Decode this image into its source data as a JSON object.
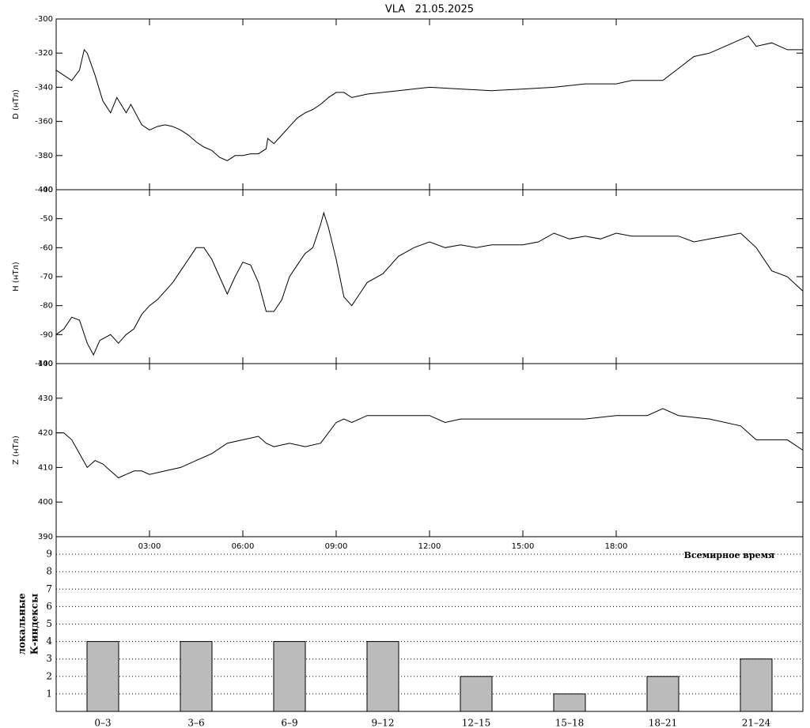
{
  "chart_data": [
    {
      "type": "line",
      "title": "VLA   21.05.2025",
      "ylabel": "D (нТл)",
      "color": "#000000",
      "xlim": [
        0,
        24
      ],
      "ylim": [
        -400,
        -300
      ],
      "yticks": [
        -300,
        -320,
        -340,
        -360,
        -380,
        -400
      ],
      "x": [
        0,
        0.25,
        0.5,
        0.75,
        0.9,
        1,
        1.25,
        1.5,
        1.75,
        1.95,
        2.25,
        2.4,
        2.75,
        3,
        3.25,
        3.5,
        3.75,
        4,
        4.25,
        4.5,
        4.75,
        5,
        5.25,
        5.5,
        5.75,
        6,
        6.25,
        6.5,
        6.75,
        6.8,
        7,
        7.25,
        7.5,
        7.75,
        8,
        8.25,
        8.5,
        8.75,
        9,
        9.25,
        9.5,
        9.75,
        10,
        11,
        12,
        13,
        14,
        15,
        16,
        17,
        18,
        18.5,
        19,
        19.5,
        20,
        20.5,
        21,
        21.5,
        22,
        22.25,
        22.5,
        23,
        23.5,
        24
      ],
      "values": [
        -330,
        -333,
        -336,
        -330,
        -318,
        -320,
        -333,
        -348,
        -355,
        -346,
        -355,
        -350,
        -362,
        -365,
        -363,
        -362,
        -363,
        -365,
        -368,
        -372,
        -375,
        -377,
        -381,
        -383,
        -380,
        -380,
        -379,
        -379,
        -376,
        -370,
        -373,
        -368,
        -363,
        -358,
        -355,
        -353,
        -350,
        -346,
        -343,
        -343,
        -346,
        -345,
        -344,
        -342,
        -340,
        -341,
        -342,
        -341,
        -340,
        -338,
        -338,
        -336,
        -336,
        -336,
        -329,
        -322,
        -320,
        -316,
        -312,
        -310,
        -316,
        -314,
        -318,
        -318
      ]
    },
    {
      "type": "line",
      "ylabel": "H (нТл)",
      "color": "#000000",
      "xlim": [
        0,
        24
      ],
      "ylim": [
        -100,
        -40
      ],
      "yticks": [
        -40,
        -50,
        -60,
        -70,
        -80,
        -90,
        -100
      ],
      "x": [
        0,
        0.25,
        0.5,
        0.75,
        1,
        1.2,
        1.4,
        1.75,
        2,
        2.25,
        2.5,
        2.75,
        3,
        3.25,
        3.5,
        3.75,
        4,
        4.25,
        4.5,
        4.75,
        5,
        5.25,
        5.5,
        5.75,
        6,
        6.25,
        6.5,
        6.75,
        7,
        7.25,
        7.5,
        7.75,
        8,
        8.25,
        8.5,
        8.6,
        8.75,
        9,
        9.25,
        9.5,
        9.75,
        10,
        10.5,
        11,
        11.5,
        12,
        12.5,
        13,
        13.5,
        14,
        14.5,
        15,
        15.5,
        16,
        16.5,
        17,
        17.5,
        18,
        18.5,
        19,
        19.5,
        20,
        20.5,
        21,
        21.5,
        22,
        22.5,
        23,
        23.5,
        24
      ],
      "values": [
        -90,
        -88,
        -84,
        -85,
        -93,
        -97,
        -92,
        -90,
        -93,
        -90,
        -88,
        -83,
        -80,
        -78,
        -75,
        -72,
        -68,
        -64,
        -60,
        -60,
        -64,
        -70,
        -76,
        -70,
        -65,
        -66,
        -72,
        -82,
        -82,
        -78,
        -70,
        -66,
        -62,
        -60,
        -52,
        -48,
        -53,
        -64,
        -77,
        -80,
        -76,
        -72,
        -69,
        -63,
        -60,
        -58,
        -60,
        -59,
        -60,
        -59,
        -59,
        -59,
        -58,
        -55,
        -57,
        -56,
        -57,
        -55,
        -56,
        -56,
        -56,
        -56,
        -58,
        -57,
        -56,
        -55,
        -60,
        -68,
        -70,
        -75
      ]
    },
    {
      "type": "line",
      "ylabel": "Z (нТл)",
      "xlabel": "Всемирное время",
      "color": "#000000",
      "xlim": [
        0,
        24
      ],
      "ylim": [
        390,
        440
      ],
      "yticks": [
        390,
        400,
        410,
        420,
        430,
        440
      ],
      "xticks": [
        {
          "value": 3,
          "label": "03:00"
        },
        {
          "value": 6,
          "label": "06:00"
        },
        {
          "value": 9,
          "label": "09:00"
        },
        {
          "value": 12,
          "label": "12:00"
        },
        {
          "value": 15,
          "label": "15:00"
        },
        {
          "value": 18,
          "label": "18:00"
        }
      ],
      "x": [
        0,
        0.25,
        0.5,
        0.75,
        1,
        1.25,
        1.5,
        1.75,
        2,
        2.25,
        2.5,
        2.75,
        3,
        3.5,
        4,
        4.5,
        5,
        5.5,
        6,
        6.5,
        6.75,
        7,
        7.5,
        8,
        8.5,
        9,
        9.25,
        9.5,
        10,
        11,
        12,
        12.5,
        13,
        14,
        15,
        16,
        17,
        18,
        19,
        19.5,
        20,
        21,
        22,
        22.5,
        23,
        23.5,
        24
      ],
      "values": [
        420,
        420,
        418,
        414,
        410,
        412,
        411,
        409,
        407,
        408,
        409,
        409,
        408,
        409,
        410,
        412,
        414,
        417,
        418,
        419,
        417,
        416,
        417,
        416,
        417,
        423,
        424,
        423,
        425,
        425,
        425,
        423,
        424,
        424,
        424,
        424,
        424,
        425,
        425,
        427,
        425,
        424,
        422,
        418,
        418,
        418,
        415
      ]
    },
    {
      "type": "bar",
      "ylabel": [
        "локальные",
        "К-индексы"
      ],
      "color": "#bbbbbb",
      "categories": [
        "0–3",
        "3–6",
        "6–9",
        "9–12",
        "12–15",
        "15–18",
        "18–21",
        "21–24"
      ],
      "values": [
        4,
        4,
        4,
        4,
        2,
        1,
        2,
        3
      ],
      "ylim": [
        0,
        10
      ],
      "yticks": [
        1,
        2,
        3,
        4,
        5,
        6,
        7,
        8,
        9
      ],
      "grid": true
    }
  ]
}
